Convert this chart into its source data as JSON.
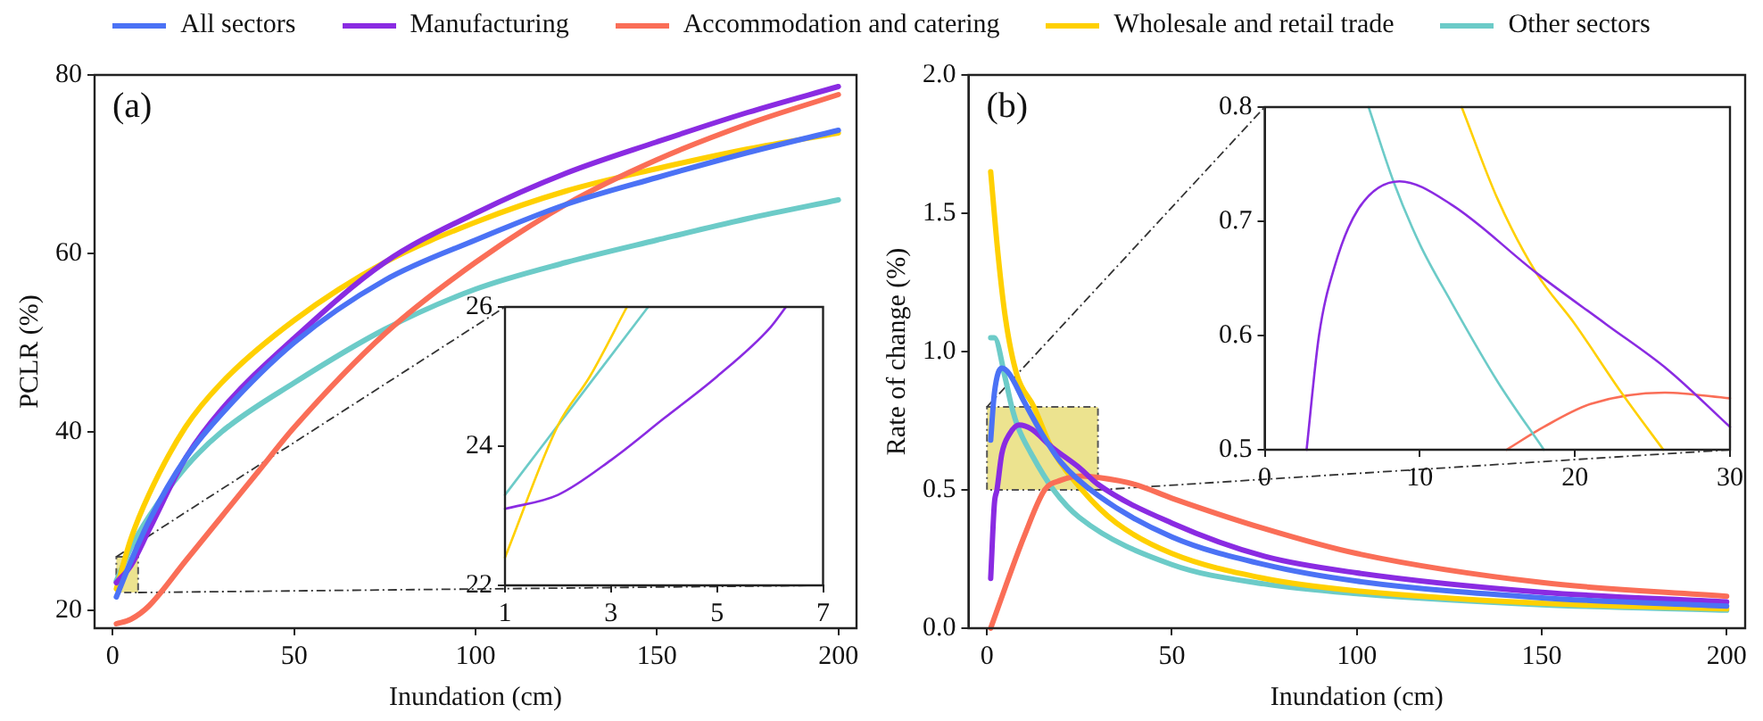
{
  "chart_data": [
    {
      "type": "line",
      "xlabel": "Inundation (cm)",
      "ylabel": "PCLR (%)",
      "annotations": [
        "(a)"
      ],
      "legend": "top",
      "grid": false,
      "xlim": [
        -5,
        205
      ],
      "xticks": [
        0,
        50,
        100,
        150,
        200
      ],
      "ylim": [
        18,
        80
      ],
      "yticks": [
        20,
        40,
        60,
        80
      ],
      "series": [
        {
          "name": "All sectors",
          "color": "#4b72f5",
          "x": [
            1,
            5,
            10,
            20,
            30,
            50,
            75,
            100,
            125,
            150,
            175,
            200
          ],
          "values": [
            21.5,
            25.5,
            30,
            37,
            42,
            50,
            57,
            61.5,
            65.5,
            68.5,
            71.3,
            73.8
          ]
        },
        {
          "name": "Manufacturing",
          "color": "#8a2be2",
          "x": [
            1,
            5,
            10,
            20,
            30,
            50,
            75,
            100,
            125,
            150,
            175,
            200
          ],
          "values": [
            23.1,
            25,
            29,
            37,
            42.5,
            50.5,
            59,
            64.5,
            69,
            72.5,
            75.8,
            78.7
          ]
        },
        {
          "name": "Accommodation and catering",
          "color": "#fa6e57",
          "x": [
            1,
            5,
            10,
            20,
            30,
            40,
            50,
            75,
            100,
            125,
            150,
            175,
            200
          ],
          "values": [
            18.5,
            19,
            20.5,
            25.5,
            30.5,
            35.5,
            40.5,
            51,
            59,
            65.5,
            70.5,
            74.5,
            77.8
          ]
        },
        {
          "name": "Wholesale and retail trade",
          "color": "#ffd000",
          "x": [
            1,
            5,
            10,
            20,
            30,
            50,
            75,
            100,
            125,
            150,
            175,
            200
          ],
          "values": [
            22.4,
            28,
            33,
            40.5,
            45.5,
            52.5,
            59,
            63.5,
            67,
            69.5,
            71.7,
            73.5
          ]
        },
        {
          "name": "Other sectors",
          "color": "#6ccbc8",
          "x": [
            1,
            5,
            10,
            20,
            30,
            50,
            75,
            100,
            125,
            150,
            175,
            200
          ],
          "values": [
            23.3,
            27,
            30.5,
            36,
            40,
            45.5,
            51.5,
            56,
            59,
            61.5,
            63.9,
            66
          ]
        }
      ]
    },
    {
      "type": "line",
      "grid": false,
      "xlim": [
        1,
        7
      ],
      "xticks": [
        1,
        3,
        5,
        7
      ],
      "ylim": [
        22,
        26
      ],
      "yticks": [
        22,
        24,
        26
      ],
      "series": [
        {
          "color": "#8a2be2",
          "x": [
            1,
            2,
            3,
            4,
            5,
            6,
            6.3
          ],
          "values": [
            23.1,
            23.3,
            23.8,
            24.4,
            25,
            25.7,
            26
          ]
        },
        {
          "color": "#ffd000",
          "x": [
            1,
            2,
            2.6,
            3.3
          ],
          "values": [
            22.4,
            24.3,
            25,
            26
          ]
        },
        {
          "color": "#6ccbc8",
          "x": [
            1,
            2,
            3,
            3.7
          ],
          "values": [
            23.3,
            24.3,
            25.3,
            26
          ]
        }
      ]
    },
    {
      "type": "line",
      "xlabel": "Inundation (cm)",
      "ylabel": "Rate of change (%)",
      "annotations": [
        "(b)"
      ],
      "grid": false,
      "xlim": [
        -5,
        205
      ],
      "xticks": [
        0,
        50,
        100,
        150,
        200
      ],
      "ylim": [
        0,
        2
      ],
      "yticks": [
        {
          "value": 0,
          "label": "0.0"
        },
        {
          "value": 0.5,
          "label": "0.5"
        },
        {
          "value": 1,
          "label": "1.0"
        },
        {
          "value": 1.5,
          "label": "1.5"
        },
        {
          "value": 2,
          "label": "2.0"
        }
      ],
      "series": [
        {
          "color": "#4b72f5",
          "x": [
            1,
            2,
            4,
            6,
            10,
            15,
            20,
            30,
            50,
            75,
            100,
            150,
            200
          ],
          "values": [
            0.68,
            0.85,
            0.94,
            0.92,
            0.82,
            0.7,
            0.6,
            0.48,
            0.33,
            0.23,
            0.17,
            0.11,
            0.08
          ]
        },
        {
          "color": "#8a2be2",
          "x": [
            1,
            2,
            2.7,
            4,
            6,
            8.7,
            12,
            17.5,
            25,
            30,
            50,
            75,
            100,
            150,
            200
          ],
          "values": [
            0.18,
            0.45,
            0.5,
            0.63,
            0.7,
            0.735,
            0.72,
            0.655,
            0.58,
            0.52,
            0.38,
            0.26,
            0.2,
            0.13,
            0.095
          ]
        },
        {
          "color": "#fa6e57",
          "x": [
            1,
            5,
            10,
            15.6,
            20,
            25.8,
            30,
            40,
            50,
            75,
            100,
            150,
            200
          ],
          "values": [
            0,
            0.15,
            0.33,
            0.5,
            0.535,
            0.55,
            0.545,
            0.52,
            0.47,
            0.36,
            0.27,
            0.165,
            0.115
          ]
        },
        {
          "color": "#ffd000",
          "x": [
            1,
            3,
            5,
            8,
            12.7,
            17.5,
            25.7,
            35,
            50,
            75,
            100,
            150,
            200
          ],
          "values": [
            1.65,
            1.35,
            1.12,
            0.92,
            0.8,
            0.65,
            0.5,
            0.38,
            0.27,
            0.18,
            0.135,
            0.09,
            0.07
          ]
        },
        {
          "color": "#6ccbc8",
          "x": [
            1,
            2,
            5,
            6.7,
            8.3,
            12,
            18,
            25,
            50,
            75,
            100,
            150,
            200
          ],
          "values": [
            1.05,
            1.05,
            0.9,
            0.8,
            0.73,
            0.63,
            0.5,
            0.4,
            0.23,
            0.16,
            0.125,
            0.085,
            0.065
          ]
        }
      ]
    },
    {
      "type": "line",
      "grid": false,
      "xlim": [
        0,
        30
      ],
      "xticks": [
        0,
        10,
        20,
        30
      ],
      "ylim": [
        0.5,
        0.8
      ],
      "yticks": [
        0.5,
        0.6,
        0.7,
        0.8
      ],
      "series": [
        {
          "color": "#8a2be2",
          "x": [
            2.7,
            3.5,
            4.5,
            6,
            8.7,
            12,
            17.5,
            22,
            26,
            30
          ],
          "values": [
            0.5,
            0.6,
            0.66,
            0.71,
            0.735,
            0.715,
            0.655,
            0.61,
            0.57,
            0.52
          ]
        },
        {
          "color": "#6ccbc8",
          "x": [
            6.7,
            8.3,
            10,
            12,
            15,
            18
          ],
          "values": [
            0.8,
            0.735,
            0.68,
            0.63,
            0.56,
            0.5
          ]
        },
        {
          "color": "#ffd000",
          "x": [
            12.7,
            15,
            17.5,
            20,
            23,
            25.7
          ],
          "values": [
            0.8,
            0.72,
            0.655,
            0.61,
            0.55,
            0.5
          ]
        },
        {
          "color": "#fa6e57",
          "x": [
            15.6,
            18,
            21,
            25.8,
            30
          ],
          "values": [
            0.5,
            0.52,
            0.54,
            0.55,
            0.545
          ]
        }
      ]
    }
  ]
}
